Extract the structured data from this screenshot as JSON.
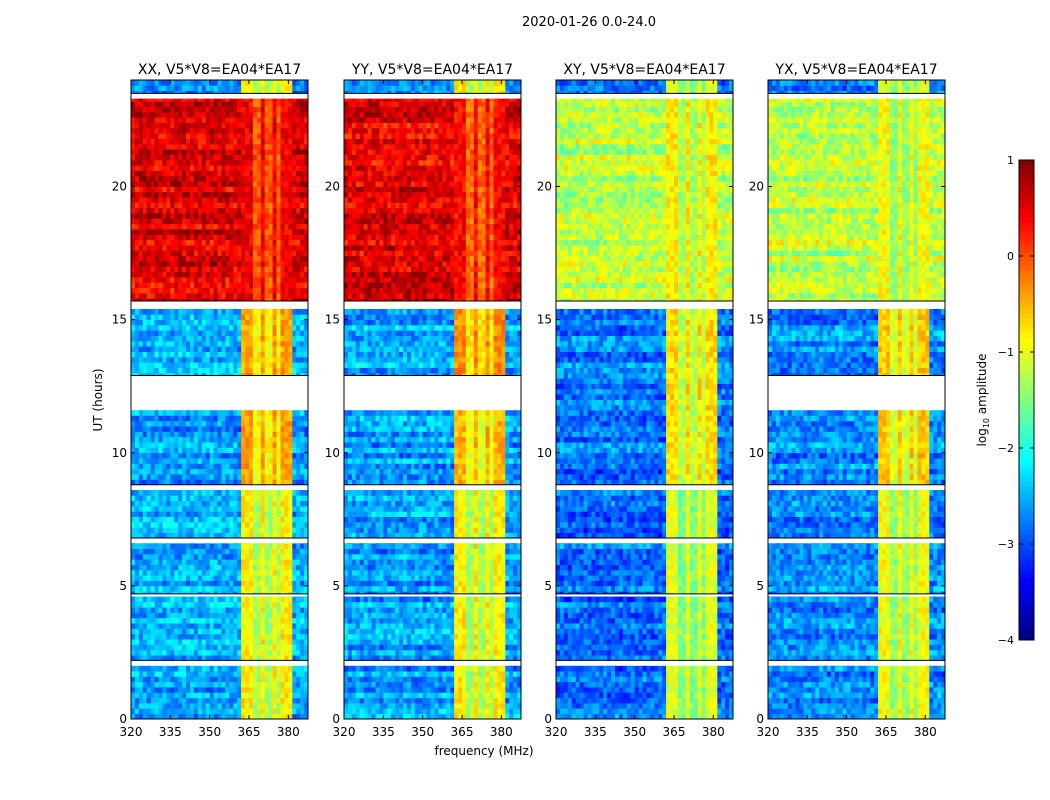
{
  "chart_data": {
    "type": "heatmap",
    "title": "2020-01-26 0.0-24.0",
    "xlabel": "frequency (MHz)",
    "ylabel": "UT (hours)",
    "xlim": [
      320,
      387.5
    ],
    "ylim": [
      0,
      24
    ],
    "xticks": [
      "320",
      "335",
      "350",
      "365",
      "380"
    ],
    "xtick_values": [
      320,
      335,
      350,
      365,
      380
    ],
    "yticks": [
      "0",
      "5",
      "10",
      "15",
      "20"
    ],
    "ytick_values": [
      0,
      5,
      10,
      15,
      20
    ],
    "colorbar": {
      "label": "log10 amplitude",
      "label_main": "log",
      "label_sub": "10",
      "label_rest": " amplitude",
      "range": [
        -4,
        1
      ],
      "ticks": [
        "−4",
        "−3",
        "−2",
        "−1",
        "0",
        "1"
      ],
      "tick_values": [
        -4,
        -3,
        -2,
        -1,
        0,
        1
      ],
      "colormap": "jet"
    },
    "band_mhz": [
      362,
      381
    ],
    "band_gaps_mhz": [
      368,
      372.5,
      376.5
    ],
    "panels": [
      {
        "title": "XX, V5*V8=EA04*EA17",
        "flagged_hours": [
          [
            2.0,
            2.2
          ],
          [
            4.6,
            4.7
          ],
          [
            6.6,
            6.8
          ],
          [
            8.6,
            8.8
          ],
          [
            11.6,
            12.9
          ],
          [
            15.4,
            15.7
          ],
          [
            23.3,
            23.5
          ]
        ],
        "segments": [
          {
            "start": 0,
            "end": 8.6,
            "background": -2.5,
            "band": -0.8
          },
          {
            "start": 8.8,
            "end": 11.6,
            "background": -2.6,
            "band": -0.4
          },
          {
            "start": 12.9,
            "end": 15.4,
            "background": -2.5,
            "band": -0.4
          },
          {
            "start": 15.7,
            "end": 23.3,
            "background": 0.55,
            "band": 0.45
          },
          {
            "start": 23.5,
            "end": 24,
            "background": -2.6,
            "band": -0.8
          }
        ]
      },
      {
        "title": "YY, V5*V8=EA04*EA17",
        "flagged_hours": [
          [
            2.0,
            2.2
          ],
          [
            4.6,
            4.7
          ],
          [
            6.6,
            6.8
          ],
          [
            8.6,
            8.8
          ],
          [
            11.6,
            12.9
          ],
          [
            15.4,
            15.7
          ],
          [
            23.3,
            23.5
          ]
        ],
        "segments": [
          {
            "start": 0,
            "end": 8.6,
            "background": -2.6,
            "band": -0.8
          },
          {
            "start": 8.8,
            "end": 11.6,
            "background": -2.6,
            "band": -0.5
          },
          {
            "start": 12.9,
            "end": 15.4,
            "background": -2.5,
            "band": -0.3
          },
          {
            "start": 15.7,
            "end": 23.3,
            "background": 0.5,
            "band": 0.35
          },
          {
            "start": 23.5,
            "end": 24,
            "background": -2.6,
            "band": -0.8
          }
        ]
      },
      {
        "title": "XY, V5*V8=EA04*EA17",
        "flagged_hours": [
          [
            2.0,
            2.2
          ],
          [
            4.6,
            4.7
          ],
          [
            6.6,
            6.8
          ],
          [
            8.6,
            8.8
          ],
          [
            15.4,
            15.7
          ],
          [
            23.3,
            23.5
          ]
        ],
        "segments": [
          {
            "start": 0,
            "end": 8.6,
            "background": -2.8,
            "band": -1.0
          },
          {
            "start": 8.8,
            "end": 15.4,
            "background": -2.8,
            "band": -0.7
          },
          {
            "start": 15.7,
            "end": 23.3,
            "background": -1.2,
            "band": -0.8
          },
          {
            "start": 23.5,
            "end": 24,
            "background": -2.8,
            "band": -1.0
          }
        ]
      },
      {
        "title": "YX, V5*V8=EA04*EA17",
        "flagged_hours": [
          [
            2.0,
            2.2
          ],
          [
            4.6,
            4.7
          ],
          [
            6.6,
            6.8
          ],
          [
            8.6,
            8.8
          ],
          [
            11.6,
            12.9
          ],
          [
            15.4,
            15.7
          ],
          [
            23.3,
            23.5
          ]
        ],
        "segments": [
          {
            "start": 0,
            "end": 8.6,
            "background": -2.7,
            "band": -0.9
          },
          {
            "start": 8.8,
            "end": 11.6,
            "background": -2.7,
            "band": -0.6
          },
          {
            "start": 12.9,
            "end": 15.4,
            "background": -2.7,
            "band": -0.6
          },
          {
            "start": 15.7,
            "end": 23.3,
            "background": -1.2,
            "band": -0.9
          },
          {
            "start": 23.5,
            "end": 24,
            "background": -2.7,
            "band": -1.0
          }
        ]
      }
    ]
  }
}
